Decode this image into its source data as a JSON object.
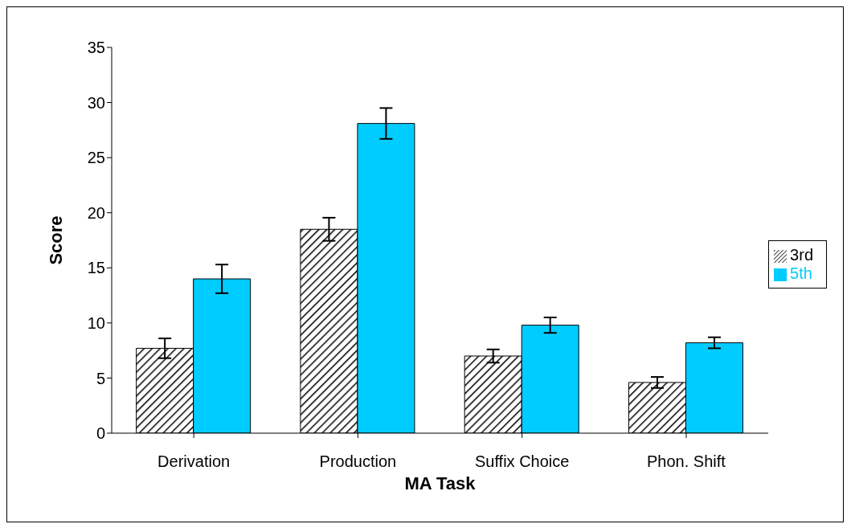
{
  "chart_data": {
    "type": "bar",
    "xlabel": "MA Task",
    "ylabel": "Score",
    "categories": [
      "Derivation",
      "Production",
      "Suffix Choice",
      "Phon. Shift"
    ],
    "series": [
      {
        "name": "3rd",
        "color": "#000000",
        "values": [
          7.7,
          18.5,
          7.0,
          4.6
        ],
        "errors": [
          0.9,
          1.05,
          0.6,
          0.5
        ]
      },
      {
        "name": "5th",
        "color": "#00ccff",
        "values": [
          14.0,
          28.1,
          9.8,
          8.2
        ],
        "errors": [
          1.3,
          1.4,
          0.7,
          0.5
        ]
      }
    ],
    "ylim": [
      0,
      35
    ],
    "yticks": [
      0,
      5,
      10,
      15,
      20,
      25,
      30,
      35
    ],
    "grid": false,
    "legend": "right"
  }
}
